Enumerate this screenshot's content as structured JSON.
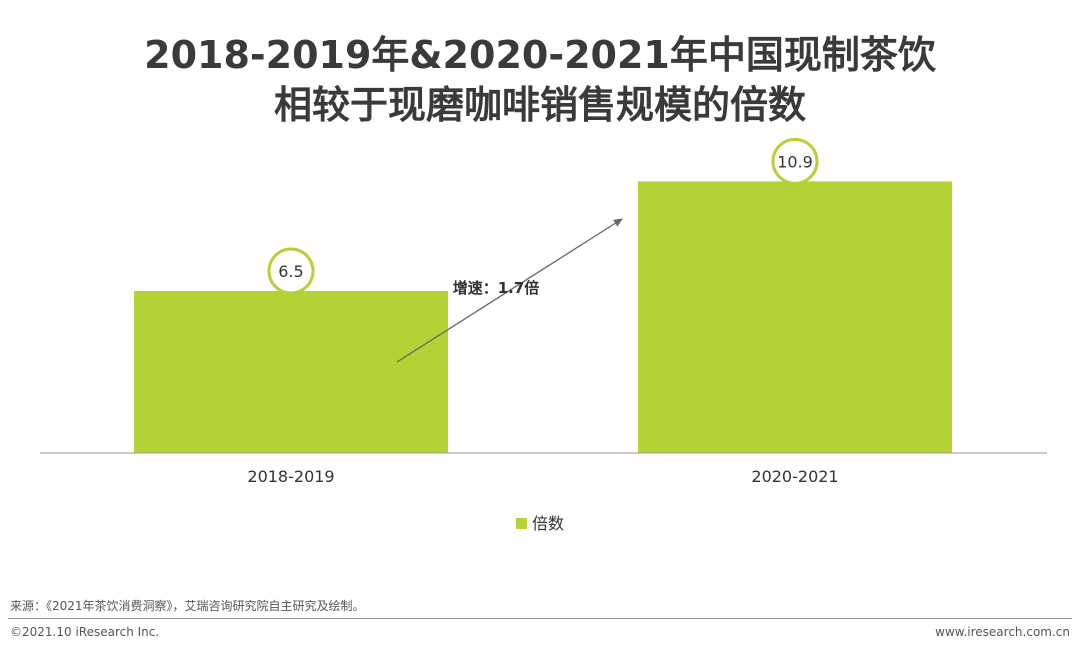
{
  "title": {
    "line1": "2018-2019年&2020-2021年中国现制茶饮",
    "line2": "相较于现磨咖啡销售规模的倍数"
  },
  "chart_data": {
    "type": "bar",
    "categories": [
      "2018-2019",
      "2020-2021"
    ],
    "series": [
      {
        "name": "倍数",
        "values": [
          6.5,
          10.9
        ]
      }
    ],
    "value_labels": [
      "6.5",
      "10.9"
    ],
    "ylim": [
      0,
      12
    ],
    "annotation": "增速：1.7倍",
    "legend_position": "bottom-center",
    "grid": false
  },
  "colors": {
    "bar": "#b2d235",
    "circle": "#b2d235",
    "axis": "#999999",
    "arrow": "#666666"
  },
  "legend": {
    "label": "倍数"
  },
  "footer": {
    "source": "来源：《2021年茶饮消费洞察》，艾瑞咨询研究院自主研究及绘制。",
    "copyright": "©2021.10 iResearch Inc.",
    "website": "www.iresearch.com.cn"
  }
}
